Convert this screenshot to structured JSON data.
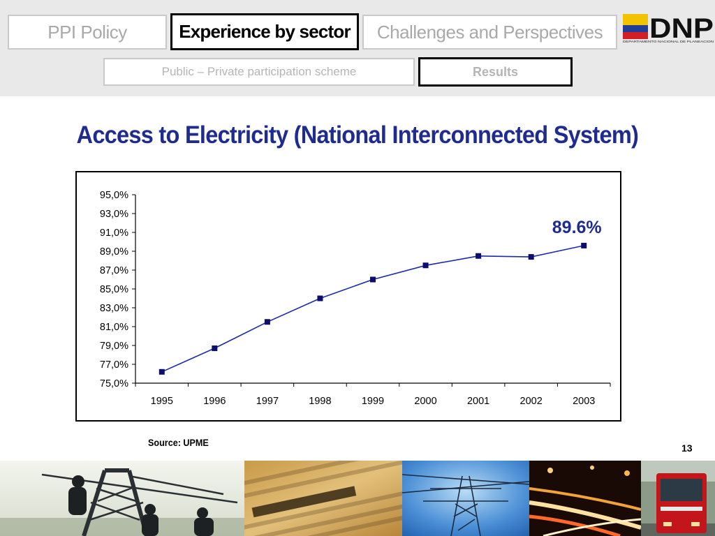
{
  "nav": {
    "top_tabs": [
      {
        "label": "PPI Policy"
      },
      {
        "label": "Experience by sector"
      },
      {
        "label": "Challenges and Perspectives"
      }
    ],
    "sub_tabs": [
      {
        "label": "Public – Private participation scheme"
      },
      {
        "label": "Results"
      }
    ]
  },
  "logo": {
    "text": "DNP",
    "subtext": "DEPARTAMENTO NACIONAL DE PLANEACION",
    "flag_colors": [
      "#f4c300",
      "#1f3d99",
      "#d21f26"
    ]
  },
  "slide": {
    "source": "Source: UPME",
    "page_number": "13"
  },
  "colors": {
    "title": "#1f2c8f",
    "series": "#1a2aa8",
    "marker": "#0d0d6b"
  },
  "chart_data": {
    "type": "line",
    "title": "Access to Electricity (National Interconnected System)",
    "x": [
      "1995",
      "1996",
      "1997",
      "1998",
      "1999",
      "2000",
      "2001",
      "2002",
      "2003"
    ],
    "series": [
      {
        "values": [
          76.2,
          78.7,
          81.5,
          84.0,
          86.0,
          87.5,
          88.5,
          88.4,
          89.6
        ]
      }
    ],
    "ylim": [
      75,
      95
    ],
    "yticks": [
      "75,0%",
      "77,0%",
      "79,0%",
      "81,0%",
      "83,0%",
      "85,0%",
      "87,0%",
      "89,0%",
      "91,0%",
      "93,0%",
      "95,0%"
    ],
    "annotation": {
      "text": "89.6%",
      "at": "2003"
    },
    "grid": false,
    "legend": "none"
  }
}
